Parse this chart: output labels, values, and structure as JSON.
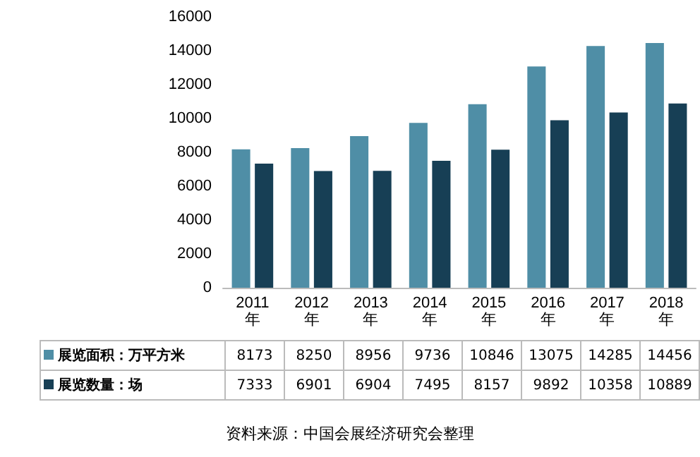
{
  "chart_data": {
    "type": "bar",
    "categories": [
      "2011\n年",
      "2012\n年",
      "2013\n年",
      "2014\n年",
      "2015\n年",
      "2016\n年",
      "2017\n年",
      "2018\n年"
    ],
    "series": [
      {
        "name": "展览面积：万平方米",
        "color": "#4f8ea6",
        "values": [
          8173,
          8250,
          8956,
          9736,
          10846,
          13075,
          14285,
          14456
        ]
      },
      {
        "name": "展览数量：场",
        "color": "#173f55",
        "values": [
          7333,
          6901,
          6904,
          7495,
          8157,
          9892,
          10358,
          10889
        ]
      }
    ],
    "ylim": [
      0,
      16000
    ],
    "yticks": [
      0,
      2000,
      4000,
      6000,
      8000,
      10000,
      12000,
      14000,
      16000
    ],
    "grid": false,
    "legend": "bottom",
    "data_labels": true,
    "annotations": [
      "资料来源：中国会展经济研究会整理"
    ]
  }
}
